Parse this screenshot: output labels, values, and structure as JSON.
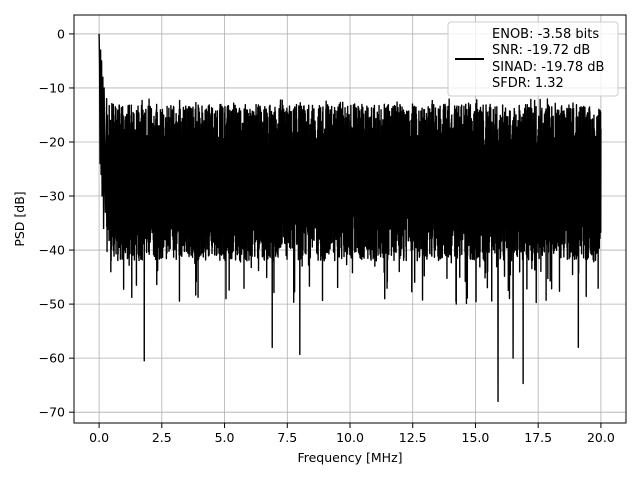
{
  "chart_data": {
    "type": "line",
    "title": "",
    "xlabel": "Frequency [MHz]",
    "ylabel": "PSD [dB]",
    "xlim": [
      -1.0,
      21.0
    ],
    "ylim": [
      -72.0,
      3.5
    ],
    "xticks": [
      0.0,
      2.5,
      5.0,
      7.5,
      10.0,
      12.5,
      15.0,
      17.5,
      20.0
    ],
    "xtick_labels": [
      "0.0",
      "2.5",
      "5.0",
      "7.5",
      "10.0",
      "12.5",
      "15.0",
      "17.5",
      "20.0"
    ],
    "yticks": [
      0,
      -10,
      -20,
      -30,
      -40,
      -50,
      -60,
      -70
    ],
    "ytick_labels": [
      "0",
      "−10",
      "−20",
      "−30",
      "−40",
      "−50",
      "−60",
      "−70"
    ],
    "grid": true,
    "legend_position": "top-right",
    "legend_entries": [
      "ENOB: -3.58 bits",
      "SNR: -19.72 dB",
      "SINAD: -19.78 dB",
      "SFDR: 1.32"
    ],
    "series": [
      {
        "color": "#000000",
        "x_range": [
          0.0,
          20.0
        ],
        "noise_floor_db": {
          "median_top": -18,
          "median_bottom": -38,
          "overall_mean": -28
        },
        "initial_peak": {
          "x": 0.0,
          "y": 0.0
        },
        "notable_dips": [
          {
            "x": 1.8,
            "y": -60.5
          },
          {
            "x": 6.9,
            "y": -58.0
          },
          {
            "x": 8.0,
            "y": -59.3
          },
          {
            "x": 15.9,
            "y": -68.0
          },
          {
            "x": 16.5,
            "y": -60.0
          },
          {
            "x": 16.9,
            "y": -64.7
          },
          {
            "x": 19.1,
            "y": -58.0
          }
        ],
        "points": [
          [
            0.0,
            0.0
          ],
          [
            0.02,
            -6.0
          ],
          [
            0.04,
            -24.0
          ],
          [
            0.06,
            -3.0
          ],
          [
            0.08,
            -26.0
          ],
          [
            0.1,
            -5.0
          ],
          [
            0.12,
            -30.0
          ],
          [
            0.15,
            -8.0
          ],
          [
            0.18,
            -36.0
          ],
          [
            0.2,
            -10.0
          ],
          [
            0.25,
            -33.0
          ],
          [
            0.3,
            -12.0
          ]
        ]
      }
    ]
  }
}
